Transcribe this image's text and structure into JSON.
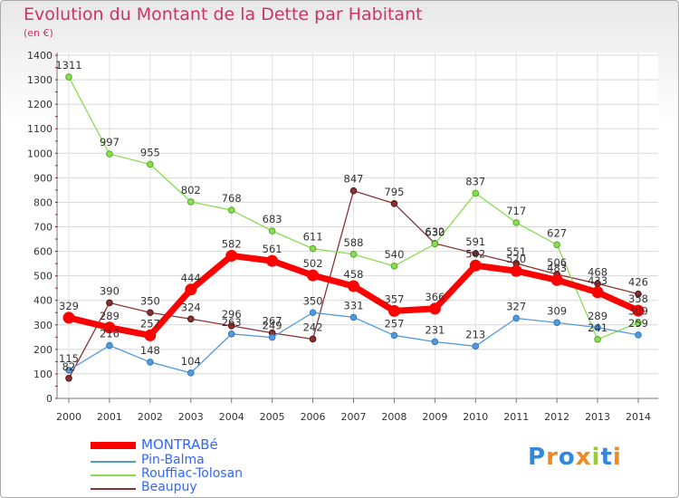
{
  "title": "Evolution du Montant de la Dette par Habitant",
  "unit_label": "(en €)",
  "logo_text": "Proxiti",
  "chart_data": {
    "type": "line",
    "title": "Evolution du Montant de la Dette par Habitant",
    "ylabel": "(en €)",
    "xlabel": "",
    "ylim": [
      0,
      1400
    ],
    "y_ticks": [
      0,
      100,
      200,
      300,
      400,
      500,
      600,
      700,
      800,
      900,
      1000,
      1100,
      1200,
      1300,
      1400
    ],
    "x": [
      "2000",
      "2001",
      "2002",
      "2003",
      "2004",
      "2005",
      "2006",
      "2007",
      "2008",
      "2009",
      "2010",
      "2011",
      "2012",
      "2013",
      "2014"
    ],
    "grid": true,
    "legend_position": "bottom-left",
    "series": [
      {
        "name": "MONTRABé",
        "color": "#ff0000",
        "emphasis": true,
        "values": [
          329,
          289,
          257,
          444,
          582,
          561,
          502,
          458,
          357,
          366,
          542,
          520,
          483,
          433,
          358
        ]
      },
      {
        "name": "Pin-Balma",
        "color": "#5599dd",
        "values": [
          115,
          216,
          148,
          104,
          263,
          249,
          350,
          331,
          257,
          231,
          213,
          327,
          309,
          289,
          259
        ]
      },
      {
        "name": "Rouffiac-Tolosan",
        "color": "#88dd55",
        "values": [
          1311,
          997,
          955,
          802,
          768,
          683,
          611,
          588,
          540,
          630,
          837,
          717,
          627,
          241,
          309
        ]
      },
      {
        "name": "Beaupuy",
        "color": "#883333",
        "values": [
          82,
          390,
          350,
          324,
          296,
          267,
          242,
          847,
          795,
          632,
          591,
          551,
          506,
          468,
          426
        ]
      }
    ]
  }
}
